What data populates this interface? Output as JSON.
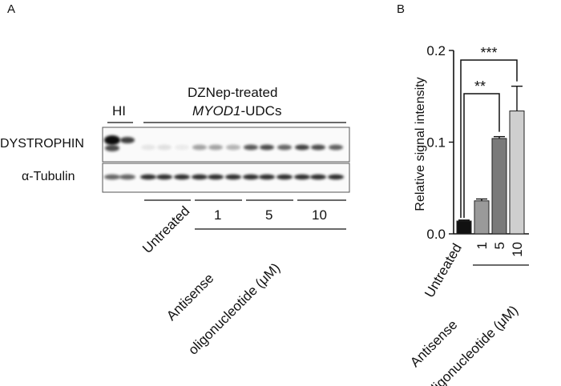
{
  "panel_a": {
    "label": "A",
    "hi_label": "HI",
    "treatment_line1": "DZNep-treated",
    "treatment_gene": "MYOD1",
    "treatment_suffix": "-UDCs",
    "row_dystrophin": "DYSTROPHIN",
    "row_tubulin": "α-Tubulin",
    "untreated": "Untreated",
    "doses": [
      "1",
      "5",
      "10"
    ],
    "aso_line1": "Antisense",
    "aso_line2": "oligonucleotide (μM)"
  },
  "panel_b": {
    "label": "B",
    "untreated": "Untreated",
    "aso_line1": "Antisense",
    "aso_line2": "oligonucleotide (μM)",
    "sig_inner": "**",
    "sig_outer": "***"
  },
  "chart_data": {
    "type": "bar",
    "categories": [
      "Untreated",
      "1",
      "5",
      "10"
    ],
    "values": [
      0.014,
      0.036,
      0.104,
      0.134
    ],
    "errors": [
      0.001,
      0.002,
      0.002,
      0.027
    ],
    "bar_colors": [
      "#111111",
      "#9a9a9a",
      "#7a7a7a",
      "#cfcfcf"
    ],
    "ylabel": "Relative signal intensity",
    "ylim": [
      0,
      0.2
    ],
    "yticks": [
      "0.0",
      "0.1",
      "0.2"
    ],
    "ytick_values": [
      0,
      0.1,
      0.2
    ],
    "grid": false
  }
}
